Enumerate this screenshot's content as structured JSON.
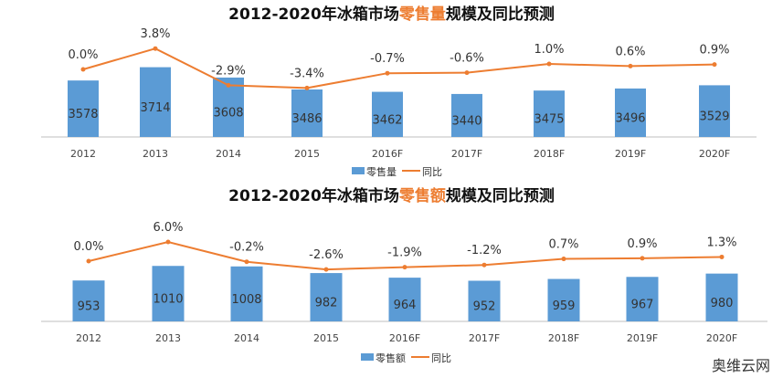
{
  "chart_data": [
    {
      "type": "bar+line",
      "title_pre": "2012-2020年冰箱市场",
      "title_hl": "零售量",
      "title_post": "规模及同比预测",
      "categories": [
        "2012",
        "2013",
        "2014",
        "2015",
        "2016F",
        "2017F",
        "2018F",
        "2019F",
        "2020F"
      ],
      "series": [
        {
          "name": "零售量",
          "type": "bar",
          "values": [
            3578,
            3714,
            3608,
            3486,
            3462,
            3440,
            3475,
            3496,
            3529
          ]
        },
        {
          "name": "同比",
          "type": "line",
          "values": [
            0.0,
            3.8,
            -2.9,
            -3.4,
            -0.7,
            -0.6,
            1.0,
            0.6,
            0.9
          ],
          "labels": [
            "0.0%",
            "3.8%",
            "-2.9%",
            "-3.4%",
            "-0.7%",
            "-0.6%",
            "1.0%",
            "0.6%",
            "0.9%"
          ]
        }
      ],
      "legend": "bottom"
    },
    {
      "type": "bar+line",
      "title_pre": "2012-2020年冰箱市场",
      "title_hl": "零售额",
      "title_post": "规模及同比预测",
      "categories": [
        "2012",
        "2013",
        "2014",
        "2015",
        "2016F",
        "2017F",
        "2018F",
        "2019F",
        "2020F"
      ],
      "series": [
        {
          "name": "零售额",
          "type": "bar",
          "values": [
            953,
            1010,
            1008,
            982,
            964,
            952,
            959,
            967,
            980
          ]
        },
        {
          "name": "同比",
          "type": "line",
          "values": [
            0.0,
            6.0,
            -0.2,
            -2.6,
            -1.9,
            -1.2,
            0.7,
            0.9,
            1.3
          ],
          "labels": [
            "0.0%",
            "6.0%",
            "-0.2%",
            "-2.6%",
            "-1.9%",
            "-1.2%",
            "0.7%",
            "0.9%",
            "1.3%"
          ]
        }
      ],
      "legend": "bottom"
    }
  ],
  "colors": {
    "bar": "#5b9bd5",
    "line": "#ed7d31"
  },
  "watermark": "奥维云网"
}
